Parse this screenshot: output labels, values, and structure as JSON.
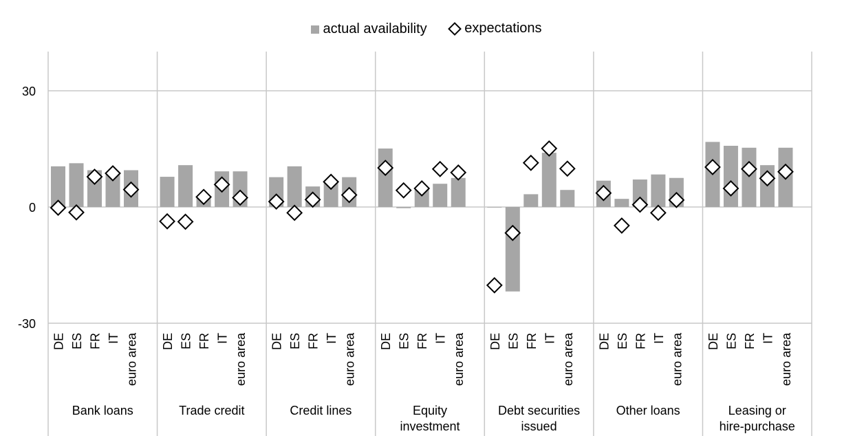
{
  "legend": {
    "bars_label": "actual availability",
    "markers_label": "expectations"
  },
  "colors": {
    "bar": "#a6a6a6",
    "grid": "#c8c8c8",
    "marker_fill": "#ffffff",
    "marker_stroke": "#000000"
  },
  "chart_data": {
    "type": "bar",
    "y_ticks": [
      30,
      0,
      -30
    ],
    "ylim": [
      -30,
      30
    ],
    "country_labels": [
      "DE",
      "ES",
      "FR",
      "IT",
      "euro area"
    ],
    "groups": [
      {
        "label": [
          "Bank loans"
        ],
        "bars": [
          10.5,
          11.3,
          9.5,
          8.5,
          9.5
        ],
        "markers": [
          -0.2,
          -1.4,
          7.8,
          8.7,
          4.5
        ]
      },
      {
        "label": [
          "Trade credit"
        ],
        "bars": [
          7.8,
          10.8,
          2.8,
          9.2,
          9.2
        ],
        "markers": [
          -3.7,
          -3.8,
          2.6,
          5.8,
          2.4
        ]
      },
      {
        "label": [
          "Credit lines"
        ],
        "bars": [
          7.7,
          10.5,
          5.3,
          6.8,
          7.7
        ],
        "markers": [
          1.4,
          -1.5,
          1.9,
          6.5,
          3.1
        ]
      },
      {
        "label": [
          "Equity",
          "investment"
        ],
        "bars": [
          15.1,
          -0.3,
          4.8,
          6.0,
          7.5
        ],
        "markers": [
          10.1,
          4.3,
          4.8,
          9.8,
          8.9
        ]
      },
      {
        "label": [
          "Debt securities",
          "issued"
        ],
        "bars": [
          0,
          -21.8,
          3.3,
          14.0,
          4.4
        ],
        "markers": [
          -20.2,
          -6.7,
          11.4,
          15.1,
          9.9
        ]
      },
      {
        "label": [
          "Other loans"
        ],
        "bars": [
          6.8,
          2.1,
          7.1,
          8.4,
          7.5
        ],
        "markers": [
          3.6,
          -4.8,
          0.6,
          -1.5,
          1.8
        ]
      },
      {
        "label": [
          "Leasing or",
          "hire-purchase"
        ],
        "bars": [
          16.8,
          15.8,
          15.3,
          10.8,
          15.3
        ],
        "markers": [
          10.3,
          4.8,
          9.8,
          7.4,
          9.1
        ]
      }
    ]
  }
}
